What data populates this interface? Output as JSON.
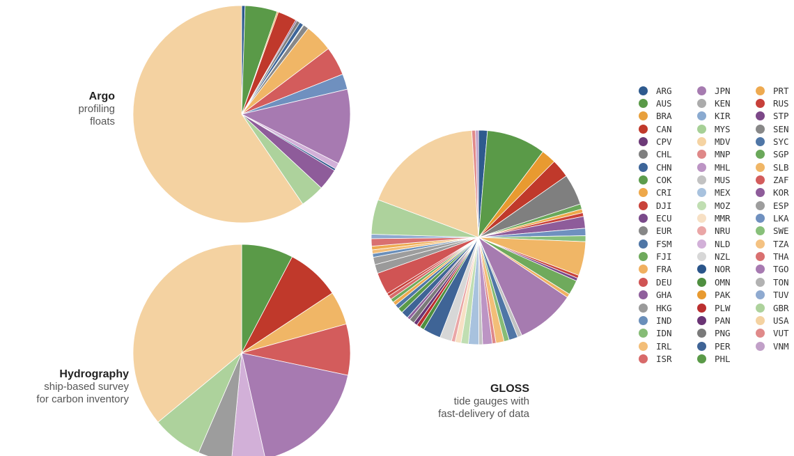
{
  "chart_data": [
    {
      "type": "pie",
      "title": "Argo",
      "subtitle_lines": [
        "profiling",
        "floats"
      ],
      "slices": [
        {
          "label": "ARG",
          "value": 0.5
        },
        {
          "label": "AUS",
          "value": 4.8
        },
        {
          "label": "BRA",
          "value": 0.2
        },
        {
          "label": "CAN",
          "value": 2.8
        },
        {
          "label": "CPV",
          "value": 0.2
        },
        {
          "label": "CHL",
          "value": 0.5
        },
        {
          "label": "CHN",
          "value": 0.6
        },
        {
          "label": "COK",
          "value": 0.1
        },
        {
          "label": "SEN",
          "value": 0.8
        },
        {
          "label": "SLB",
          "value": 4.2
        },
        {
          "label": "ZAF",
          "value": 4.3
        },
        {
          "label": "LKA",
          "value": 2.3
        },
        {
          "label": "TGO",
          "value": 11.2
        },
        {
          "label": "NLD",
          "value": 0.9
        },
        {
          "label": "NOR",
          "value": 0.3
        },
        {
          "label": "KOR",
          "value": 3.2
        },
        {
          "label": "GBR",
          "value": 3.6
        },
        {
          "label": "USA",
          "value": 59.5
        }
      ]
    },
    {
      "type": "pie",
      "title": "Hydrography",
      "subtitle_lines": [
        "ship-based survey",
        "for carbon inventory"
      ],
      "slices": [
        {
          "label": "AUS",
          "value": 7.7
        },
        {
          "label": "CAN",
          "value": 8.0
        },
        {
          "label": "SLB",
          "value": 5.0
        },
        {
          "label": "ZAF",
          "value": 7.6
        },
        {
          "label": "TGO",
          "value": 18.2
        },
        {
          "label": "NLD",
          "value": 5.0
        },
        {
          "label": "ESP",
          "value": 5.0
        },
        {
          "label": "GBR",
          "value": 7.5
        },
        {
          "label": "USA",
          "value": 36.0
        }
      ]
    },
    {
      "type": "pie",
      "title": "GLOSS",
      "subtitle_lines": [
        "tide gauges with",
        "fast-delivery of data"
      ],
      "slices": [
        {
          "label": "ARG",
          "value": 1.2
        },
        {
          "label": "AUS",
          "value": 8.0
        },
        {
          "label": "PAK",
          "value": 2.0
        },
        {
          "label": "CAN",
          "value": 2.5
        },
        {
          "label": "CHL",
          "value": 4.2
        },
        {
          "label": "SGP",
          "value": 0.7
        },
        {
          "label": "CRI",
          "value": 0.5
        },
        {
          "label": "DJI",
          "value": 0.5
        },
        {
          "label": "KOR",
          "value": 1.6
        },
        {
          "label": "LKA",
          "value": 1.0
        },
        {
          "label": "SWE",
          "value": 0.8
        },
        {
          "label": "SLB",
          "value": 4.6
        },
        {
          "label": "DJI",
          "value": 0.4
        },
        {
          "label": "ECU",
          "value": 0.4
        },
        {
          "label": "FJI",
          "value": 2.0
        },
        {
          "label": "FRA",
          "value": 0.5
        },
        {
          "label": "JPN",
          "value": 8.0
        },
        {
          "label": "MUS",
          "value": 0.6
        },
        {
          "label": "FSM",
          "value": 1.2
        },
        {
          "label": "IDN",
          "value": 0.7
        },
        {
          "label": "IRL",
          "value": 1.1
        },
        {
          "label": "MNP",
          "value": 0.5
        },
        {
          "label": "MHL",
          "value": 1.3
        },
        {
          "label": "MUS",
          "value": 0.5
        },
        {
          "label": "MEX",
          "value": 1.4
        },
        {
          "label": "MOZ",
          "value": 1.0
        },
        {
          "label": "MMR",
          "value": 0.8
        },
        {
          "label": "NRU",
          "value": 0.5
        },
        {
          "label": "NZL",
          "value": 1.6
        },
        {
          "label": "PER",
          "value": 2.4
        },
        {
          "label": "OMN",
          "value": 0.6
        },
        {
          "label": "PLW",
          "value": 0.5
        },
        {
          "label": "PAN",
          "value": 0.5
        },
        {
          "label": "PNG",
          "value": 0.7
        },
        {
          "label": "GHA",
          "value": 0.4
        },
        {
          "label": "PER",
          "value": 1.0
        },
        {
          "label": "PHL",
          "value": 0.7
        },
        {
          "label": "FSM",
          "value": 0.6
        },
        {
          "label": "PRT",
          "value": 0.5
        },
        {
          "label": "FJI",
          "value": 0.5
        },
        {
          "label": "ISR",
          "value": 0.5
        },
        {
          "label": "RUS",
          "value": 0.4
        },
        {
          "label": "DEU",
          "value": 3.0
        },
        {
          "label": "HKG",
          "value": 1.2
        },
        {
          "label": "ESP",
          "value": 1.0
        },
        {
          "label": "IND",
          "value": 0.5
        },
        {
          "label": "IRL",
          "value": 0.5
        },
        {
          "label": "PRT",
          "value": 0.5
        },
        {
          "label": "THA",
          "value": 1.0
        },
        {
          "label": "TUV",
          "value": 0.6
        },
        {
          "label": "GBR",
          "value": 4.7
        },
        {
          "label": "USA",
          "value": 16.4
        },
        {
          "label": "VUT",
          "value": 0.5
        },
        {
          "label": "VNM",
          "value": 0.4
        }
      ]
    }
  ],
  "legend": {
    "columns": [
      [
        {
          "label": "ARG",
          "color": "#2e5a8e"
        },
        {
          "label": "AUS",
          "color": "#5a9a48"
        },
        {
          "label": "BRA",
          "color": "#e8a03c"
        },
        {
          "label": "CAN",
          "color": "#c0392b"
        },
        {
          "label": "CPV",
          "color": "#6d3a78"
        },
        {
          "label": "CHL",
          "color": "#7f7f7f"
        },
        {
          "label": "CHN",
          "color": "#3d6599"
        },
        {
          "label": "COK",
          "color": "#5c9c4c"
        },
        {
          "label": "CRI",
          "color": "#eea84a"
        },
        {
          "label": "DJI",
          "color": "#c9423a"
        },
        {
          "label": "ECU",
          "color": "#7a4a8a"
        },
        {
          "label": "EUR",
          "color": "#878787"
        },
        {
          "label": "FSM",
          "color": "#4f76a6"
        },
        {
          "label": "FJI",
          "color": "#6faa5c"
        },
        {
          "label": "FRA",
          "color": "#f0b060"
        },
        {
          "label": "DEU",
          "color": "#d05454"
        },
        {
          "label": "GHA",
          "color": "#8f5f9c"
        },
        {
          "label": "HKG",
          "color": "#9a9a9a"
        },
        {
          "label": "IND",
          "color": "#6a8fba"
        },
        {
          "label": "IDN",
          "color": "#86bc76"
        },
        {
          "label": "IRL",
          "color": "#f3be78"
        },
        {
          "label": "ISR",
          "color": "#d86a6a"
        }
      ],
      [
        {
          "label": "JPN",
          "color": "#a67bb0"
        },
        {
          "label": "KEN",
          "color": "#ababab"
        },
        {
          "label": "KIR",
          "color": "#8aaad0"
        },
        {
          "label": "MYS",
          "color": "#a6d096"
        },
        {
          "label": "MDV",
          "color": "#f5d3a2"
        },
        {
          "label": "MNP",
          "color": "#df8888"
        },
        {
          "label": "MHL",
          "color": "#bc94c4"
        },
        {
          "label": "MUS",
          "color": "#c2c2c2"
        },
        {
          "label": "MEX",
          "color": "#a8c2de"
        },
        {
          "label": "MOZ",
          "color": "#c0deb2"
        },
        {
          "label": "MMR",
          "color": "#f7e0c4"
        },
        {
          "label": "NRU",
          "color": "#eaa6a6"
        },
        {
          "label": "NLD",
          "color": "#d2b0d8"
        },
        {
          "label": "NZL",
          "color": "#d7d7d7"
        },
        {
          "label": "NOR",
          "color": "#2a558a"
        },
        {
          "label": "OMN",
          "color": "#4f8f40"
        },
        {
          "label": "PAK",
          "color": "#e89a30"
        },
        {
          "label": "PLW",
          "color": "#bb2f2f"
        },
        {
          "label": "PAN",
          "color": "#6a3474"
        },
        {
          "label": "PNG",
          "color": "#7a7a7a"
        },
        {
          "label": "PER",
          "color": "#3f6496"
        },
        {
          "label": "PHL",
          "color": "#5a9a48"
        }
      ],
      [
        {
          "label": "PRT",
          "color": "#eeaa50"
        },
        {
          "label": "RUS",
          "color": "#c7403a"
        },
        {
          "label": "STP",
          "color": "#7c4888"
        },
        {
          "label": "SEN",
          "color": "#888888"
        },
        {
          "label": "SYC",
          "color": "#4f76a6"
        },
        {
          "label": "SGP",
          "color": "#6aa85a"
        },
        {
          "label": "SLB",
          "color": "#f0b666"
        },
        {
          "label": "ZAF",
          "color": "#d35c5c"
        },
        {
          "label": "KOR",
          "color": "#8e5c9a"
        },
        {
          "label": "ESP",
          "color": "#9d9d9d"
        },
        {
          "label": "LKA",
          "color": "#6f90bf"
        },
        {
          "label": "SWE",
          "color": "#88c07a"
        },
        {
          "label": "TZA",
          "color": "#f4c282"
        },
        {
          "label": "THA",
          "color": "#d97070"
        },
        {
          "label": "TGO",
          "color": "#a77ab1"
        },
        {
          "label": "TON",
          "color": "#b2b2b2"
        },
        {
          "label": "TUV",
          "color": "#8faad0"
        },
        {
          "label": "GBR",
          "color": "#add29c"
        },
        {
          "label": "USA",
          "color": "#f4d2a1"
        },
        {
          "label": "VUT",
          "color": "#e08a8a"
        },
        {
          "label": "VNM",
          "color": "#c1a0c8"
        }
      ]
    ]
  }
}
